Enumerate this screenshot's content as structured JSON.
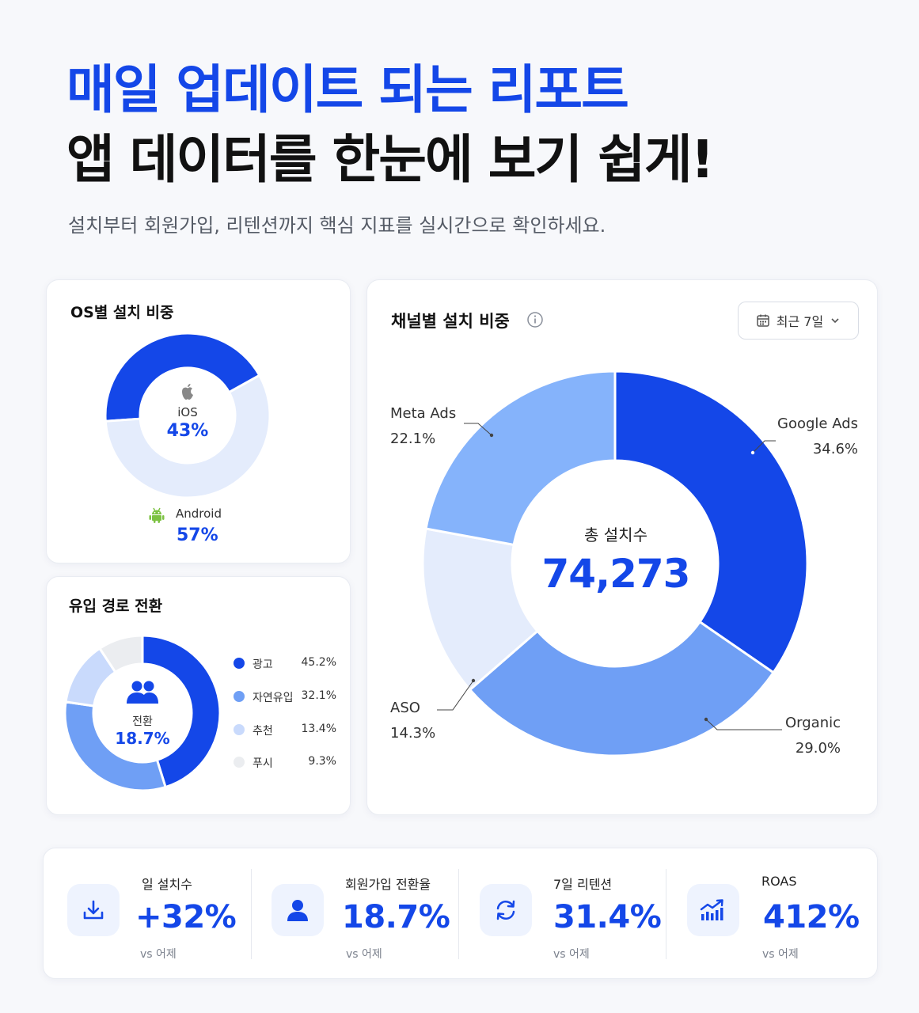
{
  "headline": {
    "line1": "매일 업데이트 되는 리포트",
    "line2": "앱 데이터를 한눈에 보기 쉽게!",
    "subtitle": "설치부터 회원가입, 리텐션까지 핵심 지표를 실시간으로 확인하세요."
  },
  "os_card": {
    "title": "OS별 설치 비중",
    "ios_label": "iOS",
    "ios_value": "43%",
    "android_label": "Android",
    "android_value": "57%"
  },
  "conversion_card": {
    "title": "유입 경로 전환",
    "center_label": "전환",
    "center_value": "18.7%"
  },
  "channel_card": {
    "title": "채널별 설치 비중",
    "range_label": "최근 7일",
    "center_label": "총 설치수",
    "center_value": "74,273",
    "labels": [
      {
        "name": "Google Ads",
        "value": "34.6%"
      },
      {
        "name": "Organic",
        "value": "29.0%"
      },
      {
        "name": "ASO",
        "value": "14.3%"
      },
      {
        "name": "Meta Ads",
        "value": "22.1%"
      }
    ]
  },
  "kpis": [
    {
      "label": "일 설치수",
      "value": "+32%",
      "sub": "vs 어제",
      "icon": "download-icon"
    },
    {
      "label": "회원가입 전환율",
      "value": "18.7%",
      "sub": "vs 어제",
      "icon": "user-icon"
    },
    {
      "label": "7일 리텐션",
      "value": "31.4%",
      "sub": "vs 어제",
      "icon": "refresh-icon"
    },
    {
      "label": "ROAS",
      "value": "412%",
      "sub": "vs 어제",
      "icon": "growth-chart-icon"
    }
  ],
  "colors": {
    "primary": "#1447e8",
    "mid_blue": "#6f9ff5",
    "light_blue": "#c9dafc",
    "pale_blue": "#e4ecfc",
    "gray": "#ebedf0",
    "android_green": "#7cc242"
  },
  "chart_data": [
    {
      "type": "pie",
      "title": "OS별 설치 비중",
      "categories": [
        "iOS",
        "Android"
      ],
      "values": [
        43,
        57
      ]
    },
    {
      "type": "pie",
      "title": "유입 경로 전환",
      "categories": [
        "광고",
        "자연유입",
        "추천",
        "푸시"
      ],
      "values": [
        45.2,
        32.1,
        13.4,
        9.3
      ],
      "labels": [
        "45.2%",
        "32.1%",
        "13.4%",
        "9.3%"
      ]
    },
    {
      "type": "pie",
      "title": "채널별 설치 비중",
      "categories": [
        "Google Ads",
        "Organic",
        "ASO",
        "Meta Ads"
      ],
      "values": [
        34.6,
        29.0,
        14.3,
        22.1
      ],
      "total": 74273
    }
  ]
}
